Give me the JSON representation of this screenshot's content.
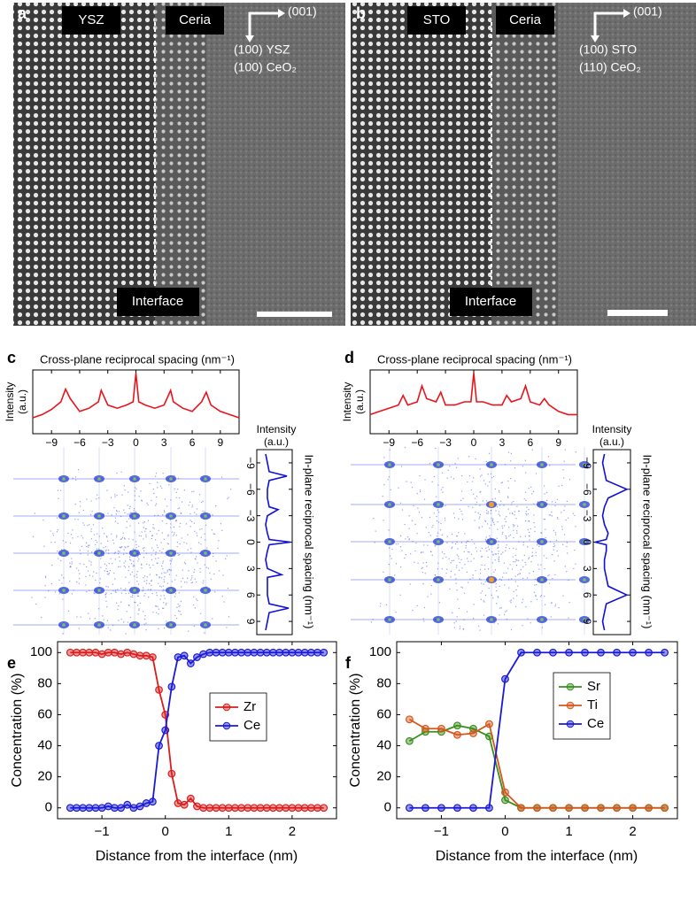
{
  "panels": [
    {
      "label": "a",
      "regions": [
        "YSZ",
        "Ceria"
      ],
      "interface": "Interface",
      "direction": "(001)",
      "orientations": [
        "(100) YSZ",
        "(100) CeO₂"
      ]
    },
    {
      "label": "b",
      "regions": [
        "STO",
        "Ceria"
      ],
      "interface": "Interface",
      "direction": "(001)",
      "orientations": [
        "(100) STO",
        "(110) CeO₂"
      ]
    }
  ],
  "chart_data": [
    {
      "type": "line",
      "panel_label": "c",
      "title": "Cross-plane reciprocal spacing (nm⁻¹)",
      "y_label": [
        "Intensity",
        "(a.u.)"
      ],
      "x": [
        -11,
        -10,
        -9,
        -8,
        -7.5,
        -7,
        -6,
        -5,
        -4,
        -3.7,
        -3,
        -2,
        -1,
        -0.3,
        0,
        0.3,
        1,
        2,
        3,
        3.7,
        4,
        5,
        6,
        7,
        7.5,
        8,
        9,
        10,
        11
      ],
      "values": [
        0.25,
        0.3,
        0.38,
        0.5,
        0.7,
        0.55,
        0.35,
        0.4,
        0.5,
        0.68,
        0.45,
        0.4,
        0.45,
        0.5,
        0.95,
        0.5,
        0.45,
        0.4,
        0.45,
        0.68,
        0.5,
        0.4,
        0.35,
        0.5,
        0.65,
        0.45,
        0.35,
        0.3,
        0.25
      ],
      "color": "#e8141c",
      "xlim": [
        -11,
        11
      ],
      "ylim": [
        0,
        1
      ],
      "xticks": [
        {
          "value": -9,
          "label": "−9"
        },
        {
          "value": -6,
          "label": "−6"
        },
        {
          "value": -3,
          "label": "−3"
        },
        0,
        3,
        6,
        9
      ]
    },
    {
      "type": "line",
      "orientation": "vertical",
      "x_label": [
        "Intensity",
        "(a.u.)"
      ],
      "y_label": "In-plane reciprocal spacing (nm⁻¹)",
      "y": [
        -10,
        -9,
        -8,
        -7.5,
        -7,
        -6,
        -5,
        -4,
        -3.7,
        -3,
        -2,
        -1,
        -0.3,
        0,
        0.3,
        1,
        2,
        3,
        3.7,
        4,
        5,
        6,
        7,
        7.5,
        8,
        9,
        10
      ],
      "values": [
        0.25,
        0.3,
        0.35,
        0.85,
        0.35,
        0.3,
        0.3,
        0.35,
        0.6,
        0.3,
        0.25,
        0.3,
        0.35,
        0.95,
        0.35,
        0.3,
        0.25,
        0.3,
        0.7,
        0.3,
        0.3,
        0.3,
        0.35,
        0.9,
        0.35,
        0.3,
        0.25
      ],
      "color": "#1010d8",
      "xlim": [
        0,
        1
      ],
      "ylim": [
        -10.5,
        10.5
      ],
      "yticks": [
        {
          "value": -9,
          "label": "−9"
        },
        {
          "value": -6,
          "label": "−6"
        },
        {
          "value": -3,
          "label": "−3"
        },
        0,
        3,
        6,
        9
      ]
    },
    {
      "type": "line",
      "panel_label": "d",
      "title": "Cross-plane reciprocal spacing (nm⁻¹)",
      "y_label": [
        "Intensity",
        "(a.u.)"
      ],
      "x": [
        -11,
        -10,
        -9,
        -8,
        -7.5,
        -7,
        -6,
        -5.5,
        -5,
        -4,
        -3.5,
        -3,
        -2,
        -1,
        -0.3,
        0,
        0.3,
        1,
        2,
        3,
        3.5,
        4,
        5,
        5.5,
        6,
        7,
        7.5,
        8,
        9,
        10,
        11
      ],
      "values": [
        0.3,
        0.35,
        0.4,
        0.45,
        0.6,
        0.45,
        0.5,
        0.75,
        0.55,
        0.5,
        0.65,
        0.45,
        0.45,
        0.5,
        0.5,
        0.95,
        0.5,
        0.5,
        0.45,
        0.45,
        0.6,
        0.5,
        0.55,
        0.75,
        0.5,
        0.45,
        0.55,
        0.45,
        0.35,
        0.3,
        0.3
      ],
      "color": "#e8141c",
      "xlim": [
        -11,
        11
      ],
      "ylim": [
        0,
        1
      ],
      "xticks": [
        {
          "value": -9,
          "label": "−9"
        },
        {
          "value": -6,
          "label": "−6"
        },
        {
          "value": -3,
          "label": "−3"
        },
        0,
        3,
        6,
        9
      ]
    },
    {
      "type": "line",
      "orientation": "vertical",
      "x_label": [
        "Intensity",
        "(a.u.)"
      ],
      "y_label": "In-plane reciprocal spacing (nm⁻¹)",
      "y": [
        -10,
        -9,
        -8,
        -7,
        -6,
        -5,
        -4,
        -3,
        -2,
        -1,
        -0.3,
        0,
        0.3,
        1,
        2,
        3,
        4,
        5,
        6,
        7,
        8,
        9,
        10
      ],
      "values": [
        0.3,
        0.25,
        0.3,
        0.35,
        0.9,
        0.4,
        0.3,
        0.25,
        0.3,
        0.4,
        0.35,
        0.05,
        0.35,
        0.35,
        0.3,
        0.3,
        0.35,
        0.4,
        0.9,
        0.35,
        0.3,
        0.25,
        0.3
      ],
      "color": "#1010d8",
      "xlim": [
        0,
        1
      ],
      "ylim": [
        -10.5,
        10.5
      ],
      "yticks": [
        {
          "value": -9,
          "label": "−9"
        },
        {
          "value": -6,
          "label": "−6"
        },
        {
          "value": -3,
          "label": "−3"
        },
        0,
        3,
        6,
        9
      ]
    },
    {
      "type": "line",
      "panel_label": "e",
      "marker": "o",
      "legend": "center right",
      "x_label": "Distance from the interface (nm)",
      "y_label": "Concentration (%)",
      "x": [
        -1.5,
        -1.4,
        -1.3,
        -1.2,
        -1.1,
        -1.0,
        -0.9,
        -0.8,
        -0.7,
        -0.6,
        -0.5,
        -0.4,
        -0.3,
        -0.2,
        -0.1,
        0,
        0.1,
        0.2,
        0.3,
        0.4,
        0.5,
        0.6,
        0.7,
        0.8,
        0.9,
        1.0,
        1.1,
        1.2,
        1.3,
        1.4,
        1.5,
        1.6,
        1.7,
        1.8,
        1.9,
        2.0,
        2.1,
        2.2,
        2.3,
        2.4,
        2.5
      ],
      "series": [
        {
          "name": "Zr",
          "color": "#d81e1e",
          "values": [
            100,
            100,
            100,
            100,
            100,
            99,
            100,
            100,
            99,
            100,
            99,
            98,
            98,
            97,
            76,
            60,
            22,
            3,
            2,
            6,
            1,
            0,
            0,
            0,
            0,
            0,
            0,
            0,
            0,
            0,
            0,
            0,
            0,
            0,
            0,
            0,
            0,
            0,
            0,
            0,
            0
          ]
        },
        {
          "name": "Ce",
          "color": "#1a1ad6",
          "values": [
            0,
            0,
            0,
            0,
            0,
            0,
            1,
            0,
            0,
            2,
            0,
            1,
            3,
            4,
            40,
            50,
            78,
            97,
            98,
            93,
            97,
            99,
            100,
            100,
            100,
            100,
            100,
            100,
            100,
            100,
            100,
            100,
            100,
            100,
            100,
            100,
            100,
            100,
            100,
            100,
            100
          ]
        }
      ],
      "xlim": [
        -1.7,
        2.7
      ],
      "ylim": [
        -7,
        107
      ],
      "xticks": [
        {
          "value": -1,
          "label": "−1"
        },
        0,
        1,
        2
      ],
      "yticks": [
        0,
        20,
        40,
        60,
        80,
        100
      ]
    },
    {
      "type": "line",
      "panel_label": "f",
      "marker": "o",
      "legend": "upper right",
      "x_label": "Distance from the interface (nm)",
      "y_label": "Concentration (%)",
      "x": [
        -1.5,
        -1.25,
        -1,
        -0.75,
        -0.5,
        -0.25,
        0,
        0.25,
        0.5,
        0.75,
        1,
        1.25,
        1.5,
        1.75,
        2,
        2.25,
        2.5
      ],
      "series": [
        {
          "name": "Sr",
          "color": "#3a8f1e",
          "values": [
            43,
            49,
            49,
            53,
            51,
            46,
            5,
            0,
            0,
            0,
            0,
            0,
            0,
            0,
            0,
            0,
            0
          ]
        },
        {
          "name": "Ti",
          "color": "#d4561c",
          "values": [
            57,
            51,
            51,
            47,
            48,
            54,
            10,
            0,
            0,
            0,
            0,
            0,
            0,
            0,
            0,
            0,
            0
          ]
        },
        {
          "name": "Ce",
          "color": "#1a1ad6",
          "values": [
            0,
            0,
            0,
            0,
            0,
            0,
            83,
            100,
            100,
            100,
            100,
            100,
            100,
            100,
            100,
            100,
            100
          ]
        }
      ],
      "xlim": [
        -1.7,
        2.7
      ],
      "ylim": [
        -7,
        107
      ],
      "xticks": [
        {
          "value": -1,
          "label": "−1"
        },
        0,
        1,
        2
      ],
      "yticks": [
        0,
        20,
        40,
        60,
        80,
        100
      ]
    }
  ]
}
